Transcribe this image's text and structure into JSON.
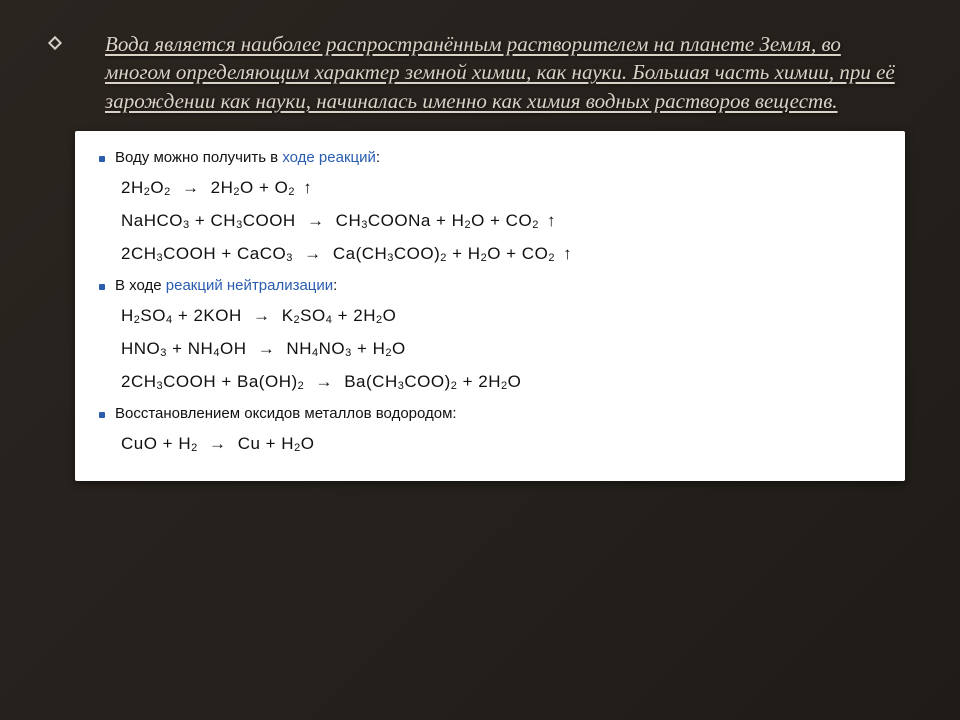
{
  "title_text": "Вода является наиболее распространённым растворителем на планете Земля, во многом определяющим характер земной химии, как науки. Большая часть химии, при её зарождении как науки, начиналась именно как химия водных растворов веществ.",
  "sections": [
    {
      "pre": "Воду можно получить в ",
      "link": "ходе реакций",
      "post": ":",
      "equations": [
        "2H<sub>2</sub>O<sub>2</sub> <span class='arrow'>→</span> 2H<sub>2</sub>O + O<sub>2</sub> <span class='up'>↑</span>",
        "NaHCO<sub>3</sub> + CH<sub>3</sub>COOH <span class='arrow'>→</span> CH<sub>3</sub>COONa + H<sub>2</sub>O + CO<sub>2</sub> <span class='up'>↑</span>",
        "2CH<sub>3</sub>COOH + CaCO<sub>3</sub> <span class='arrow'>→</span> Ca(CH<sub>3</sub>COO)<sub>2</sub> + H<sub>2</sub>O + CO<sub>2</sub> <span class='up'>↑</span>"
      ]
    },
    {
      "pre": "В ходе ",
      "link": "реакций нейтрализации",
      "post": ":",
      "equations": [
        "H<sub>2</sub>SO<sub>4</sub> + 2KOH <span class='arrow'>→</span> K<sub>2</sub>SO<sub>4</sub> + 2H<sub>2</sub>O",
        "HNO<sub>3</sub> + NH<sub>4</sub>OH <span class='arrow'>→</span> NH<sub>4</sub>NO<sub>3</sub> + H<sub>2</sub>O",
        "2CH<sub>3</sub>COOH + Ba(OH)<sub>2</sub> <span class='arrow'>→</span> Ba(CH<sub>3</sub>COO)<sub>2</sub> + 2H<sub>2</sub>O"
      ]
    },
    {
      "pre": "Восстановлением оксидов металлов водородом:",
      "link": "",
      "post": "",
      "equations": [
        "CuO + H<sub>2</sub> <span class='arrow'>→</span> Cu + H<sub>2</sub>O"
      ]
    }
  ],
  "colors": {
    "slide_bg": "#1f1c18",
    "title_color": "#d9d3c7",
    "card_bg": "#ffffff",
    "link_color": "#2a5db0",
    "text_color": "#111111"
  },
  "fonts": {
    "title_family": "Times New Roman",
    "title_size_pt": 16,
    "title_style": "italic underline",
    "body_family": "Arial",
    "eq_family": "Verdana",
    "eq_size_pt": 13
  }
}
